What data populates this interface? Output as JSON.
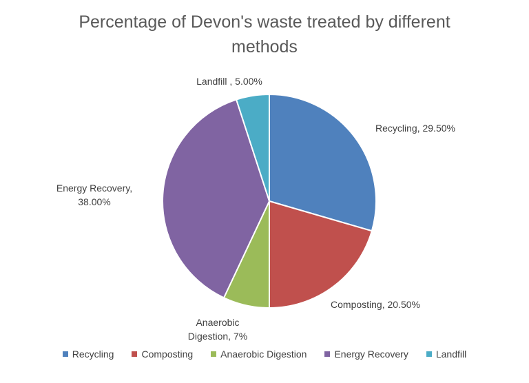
{
  "chart_data": {
    "type": "pie",
    "title": "Percentage of Devon's waste treated by different methods",
    "categories": [
      "Recycling",
      "Composting",
      "Anaerobic Digestion",
      "Energy Recovery",
      "Landfill"
    ],
    "values": [
      29.5,
      20.5,
      7,
      38,
      5
    ],
    "value_labels": [
      "Recycling, 29.50%",
      "Composting, 20.50%",
      "Anaerobic Digestion, 7%",
      "Energy Recovery, 38.00%",
      "Landfill , 5.00%"
    ],
    "colors": [
      "#4f81bd",
      "#c0504d",
      "#9bbb59",
      "#8064a2",
      "#4bacc6"
    ],
    "legend": "bottom"
  }
}
